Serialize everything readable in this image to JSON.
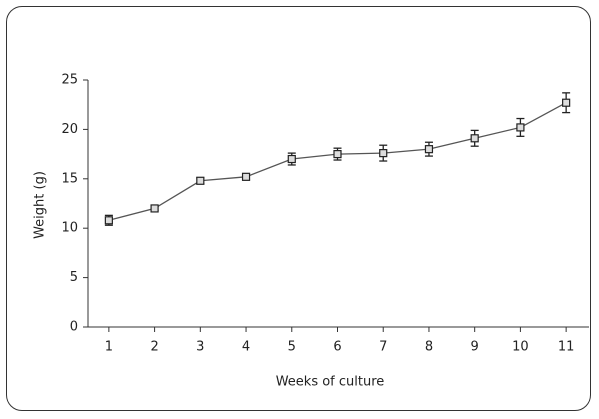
{
  "chart_data": {
    "type": "line",
    "x": [
      1,
      2,
      3,
      4,
      5,
      6,
      7,
      8,
      9,
      10,
      11
    ],
    "values": [
      10.8,
      12.0,
      14.8,
      15.2,
      17.0,
      17.5,
      17.6,
      18.0,
      19.1,
      20.2,
      22.7
    ],
    "errors": [
      0.5,
      0.2,
      0.3,
      0.3,
      0.6,
      0.6,
      0.8,
      0.7,
      0.8,
      0.9,
      1.0
    ],
    "color": "#555555",
    "xlabel": "Weeks of culture",
    "ylabel": "Weight (g)",
    "xlim": [
      0.5,
      11.5
    ],
    "xticks": [
      1,
      2,
      3,
      4,
      5,
      6,
      7,
      8,
      9,
      10,
      11
    ],
    "ylim": [
      0,
      25
    ],
    "yticks": [
      0,
      5,
      10,
      15,
      20,
      25
    ]
  }
}
